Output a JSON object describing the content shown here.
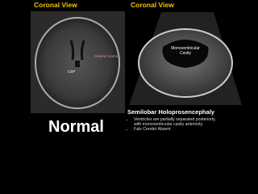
{
  "left_panel": {
    "title": "Coronal View",
    "labels": [
      "Anterior Horns",
      "CSP"
    ],
    "caption": "Normal"
  },
  "right_panel": {
    "title": "Coronal View",
    "labels": [
      "Monoventricular Cavity"
    ],
    "caption": "Semilobar Holoprosencephaly",
    "bullets": [
      "Ventricles are partially separated posteriorly, with monoventricular cavity anteriorly.",
      "Falx Cerebri Absent"
    ]
  }
}
